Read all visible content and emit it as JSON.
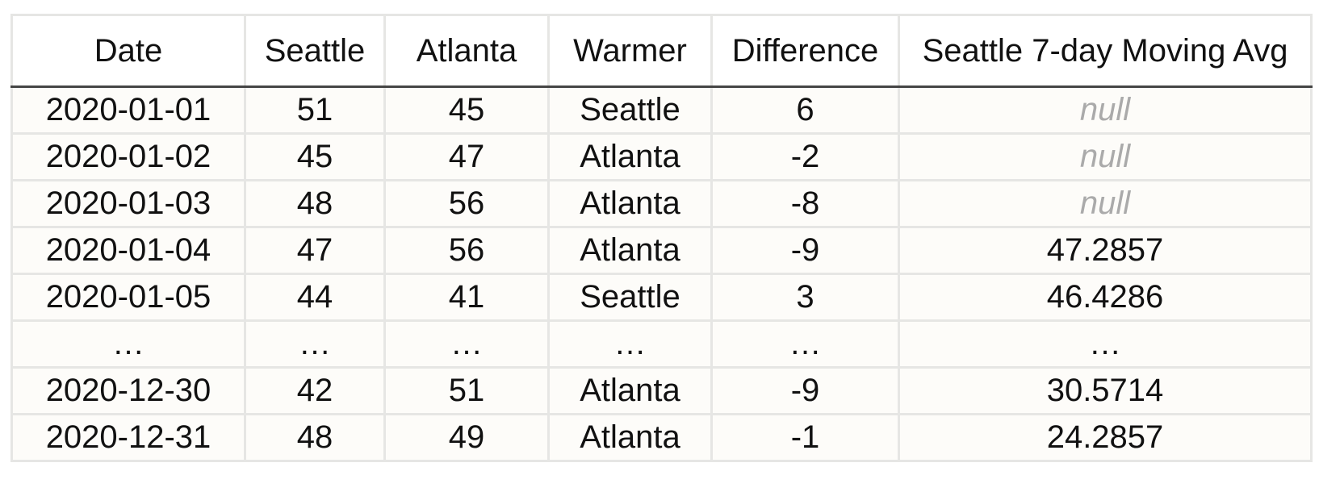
{
  "table": {
    "columns": [
      "Date",
      "Seattle",
      "Atlanta",
      "Warmer",
      "Difference",
      "Seattle 7-day Moving Avg"
    ],
    "rows": [
      [
        "2020-01-01",
        51,
        45,
        "Seattle",
        6,
        "null"
      ],
      [
        "2020-01-02",
        45,
        47,
        "Atlanta",
        -2,
        "null"
      ],
      [
        "2020-01-03",
        48,
        56,
        "Atlanta",
        -8,
        "null"
      ],
      [
        "2020-01-04",
        47,
        56,
        "Atlanta",
        -9,
        47.2857
      ],
      [
        "2020-01-05",
        44,
        41,
        "Seattle",
        3,
        46.4286
      ],
      [
        "…",
        "…",
        "…",
        "…",
        "…",
        "…"
      ],
      [
        "2020-12-30",
        42,
        51,
        "Atlanta",
        -9,
        30.5714
      ],
      [
        "2020-12-31",
        48,
        49,
        "Atlanta",
        -1,
        24.2857
      ]
    ]
  }
}
